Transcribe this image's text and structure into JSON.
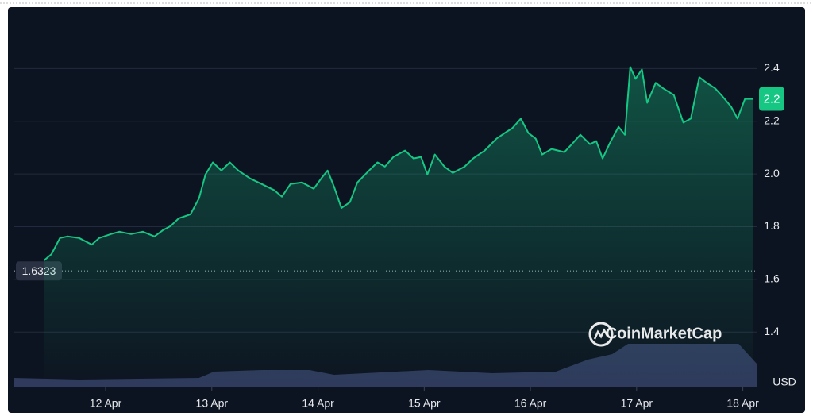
{
  "chart_data": {
    "type": "line",
    "series": [
      {
        "color": "#16c784",
        "x": [
          11.42,
          11.49,
          11.57,
          11.64,
          11.75,
          11.87,
          11.94,
          12.05,
          12.13,
          12.24,
          12.35,
          12.46,
          12.54,
          12.61,
          12.69,
          12.8,
          12.88,
          12.94,
          13.01,
          13.09,
          13.17,
          13.25,
          13.36,
          13.47,
          13.59,
          13.66,
          13.74,
          13.85,
          13.96,
          14.03,
          14.09,
          14.15,
          14.22,
          14.3,
          14.37,
          14.48,
          14.56,
          14.63,
          14.71,
          14.82,
          14.9,
          14.97,
          15.03,
          15.1,
          15.19,
          15.27,
          15.38,
          15.46,
          15.57,
          15.68,
          15.76,
          15.83,
          15.91,
          15.98,
          16.05,
          16.11,
          16.2,
          16.32,
          16.39,
          16.47,
          16.56,
          16.62,
          16.68,
          16.75,
          16.83,
          16.89,
          16.94,
          16.99,
          17.05,
          17.1,
          17.18,
          17.25,
          17.35,
          17.44,
          17.51,
          17.59,
          17.66,
          17.74,
          17.81,
          17.89,
          17.95,
          18.02,
          18.1
        ],
        "values": [
          1.672,
          1.696,
          1.757,
          1.763,
          1.757,
          1.732,
          1.757,
          1.772,
          1.781,
          1.772,
          1.781,
          1.763,
          1.787,
          1.802,
          1.832,
          1.847,
          1.908,
          1.998,
          2.044,
          2.013,
          2.044,
          2.013,
          1.983,
          1.962,
          1.938,
          1.914,
          1.962,
          1.968,
          1.944,
          1.983,
          2.013,
          1.953,
          1.871,
          1.893,
          1.968,
          2.013,
          2.044,
          2.028,
          2.065,
          2.089,
          2.059,
          2.065,
          1.998,
          2.074,
          2.028,
          2.004,
          2.028,
          2.059,
          2.089,
          2.134,
          2.156,
          2.174,
          2.21,
          2.156,
          2.134,
          2.074,
          2.095,
          2.083,
          2.113,
          2.149,
          2.113,
          2.125,
          2.059,
          2.119,
          2.179,
          2.149,
          2.406,
          2.361,
          2.397,
          2.27,
          2.346,
          2.325,
          2.3,
          2.195,
          2.21,
          2.367,
          2.346,
          2.325,
          2.294,
          2.255,
          2.21,
          2.285,
          2.285
        ]
      }
    ],
    "xlim": [
      11.14,
      18.13
    ],
    "xticks": [
      {
        "value": 12,
        "label": "12 Apr"
      },
      {
        "value": 13,
        "label": "13 Apr"
      },
      {
        "value": 14,
        "label": "14 Apr"
      },
      {
        "value": 15,
        "label": "15 Apr"
      },
      {
        "value": 16,
        "label": "16 Apr"
      },
      {
        "value": 17,
        "label": "17 Apr"
      },
      {
        "value": 18,
        "label": "18 Apr"
      }
    ],
    "ylim": [
      1.19,
      2.6
    ],
    "yticks": [
      {
        "value": 1.4,
        "label": "1.4"
      },
      {
        "value": 1.6,
        "label": "1.6"
      },
      {
        "value": 1.8,
        "label": "1.8"
      },
      {
        "value": 2.0,
        "label": "2.0"
      },
      {
        "value": 2.2,
        "label": "2.2"
      },
      {
        "value": 2.4,
        "label": "2.4"
      }
    ],
    "grid": true,
    "reference": {
      "value": 1.6323,
      "label": "1.6323"
    },
    "price_label": "2.2",
    "volume": {
      "color": "#2f3a5c",
      "y2lim": [
        0,
        100
      ],
      "x": [
        11.14,
        11.75,
        12.88,
        13.02,
        13.47,
        13.92,
        14.15,
        15.04,
        15.64,
        16.24,
        16.54,
        16.77,
        16.92,
        17.96,
        18.13
      ],
      "values": [
        12,
        10,
        12,
        20,
        22,
        22,
        16,
        22,
        18,
        20,
        35,
        42,
        55,
        55,
        30
      ]
    },
    "watermark": "CoinMarketCap",
    "unit": "USD"
  }
}
